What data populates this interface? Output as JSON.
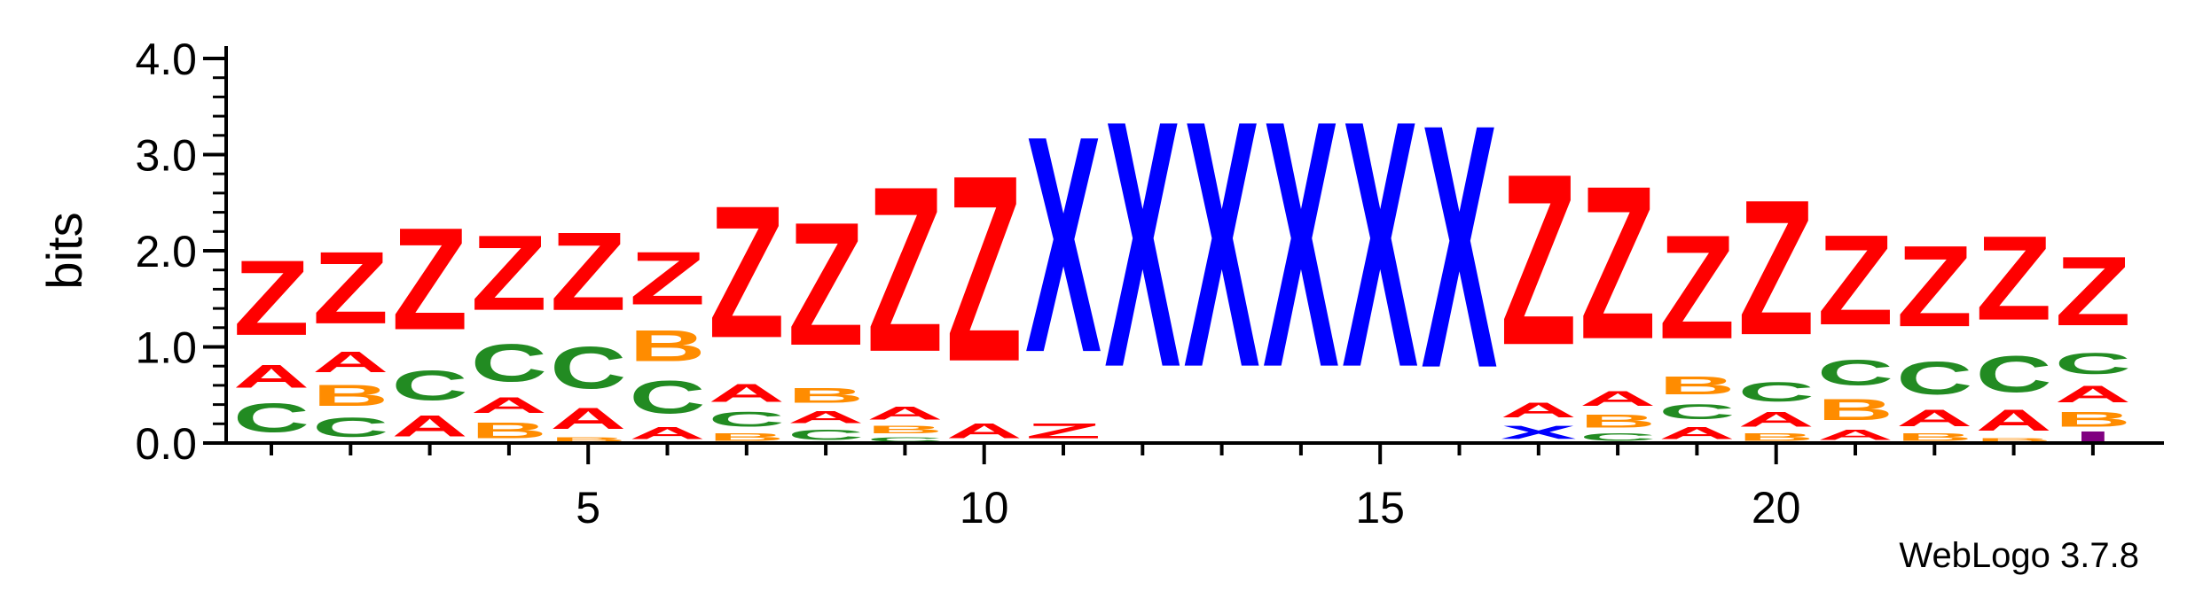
{
  "chart_data": {
    "type": "sequence-logo",
    "ylabel": "bits",
    "ylim": [
      0,
      4.0
    ],
    "yticks": [
      "0.0",
      "1.0",
      "2.0",
      "3.0",
      "4.0"
    ],
    "xticks": [
      5,
      10,
      15,
      20
    ],
    "positions": 24,
    "colors": {
      "Z": "#ff0000",
      "A": "#ff0000",
      "X": "#0000ff",
      "B": "#ff8c00",
      "C": "#228b22",
      "other": "#800080"
    },
    "columns": [
      {
        "pos": 1,
        "stack": [
          [
            "A",
            0.02
          ],
          [
            "C",
            0.48
          ],
          [
            "A",
            0.38
          ],
          [
            "Z",
            1.25
          ]
        ]
      },
      {
        "pos": 2,
        "stack": [
          [
            "C",
            0.32
          ],
          [
            "B",
            0.35
          ],
          [
            "A",
            0.34
          ],
          [
            "Z",
            1.2
          ]
        ]
      },
      {
        "pos": 3,
        "stack": [
          [
            "A",
            0.35
          ],
          [
            "C",
            0.5
          ],
          [
            "Z",
            1.7
          ]
        ]
      },
      {
        "pos": 4,
        "stack": [
          [
            "B",
            0.26
          ],
          [
            "A",
            0.26
          ],
          [
            "C",
            0.62
          ],
          [
            "Z",
            1.25
          ]
        ]
      },
      {
        "pos": 5,
        "stack": [
          [
            "B",
            0.08
          ],
          [
            "A",
            0.35
          ],
          [
            "C",
            0.7
          ],
          [
            "Z",
            1.3
          ]
        ]
      },
      {
        "pos": 6,
        "stack": [
          [
            "A",
            0.2
          ],
          [
            "C",
            0.55
          ],
          [
            "B",
            0.52
          ],
          [
            "Z",
            0.88
          ]
        ]
      },
      {
        "pos": 7,
        "stack": [
          [
            "B",
            0.12
          ],
          [
            "C",
            0.25
          ],
          [
            "A",
            0.3
          ],
          [
            "Z",
            2.2
          ]
        ]
      },
      {
        "pos": 8,
        "stack": [
          [
            "C",
            0.17
          ],
          [
            "A",
            0.2
          ],
          [
            "B",
            0.25
          ],
          [
            "Z",
            2.05
          ]
        ]
      },
      {
        "pos": 9,
        "stack": [
          [
            "C",
            0.08
          ],
          [
            "B",
            0.12
          ],
          [
            "A",
            0.22
          ],
          [
            "Z",
            2.75
          ]
        ]
      },
      {
        "pos": 10,
        "stack": [
          [
            "A",
            0.25
          ],
          [
            "Z",
            3.1
          ]
        ]
      },
      {
        "pos": 11,
        "stack": [
          [
            "Z",
            0.25
          ],
          [
            "X",
            3.6
          ]
        ]
      },
      {
        "pos": 12,
        "stack": [
          [
            "X",
            4.1
          ]
        ]
      },
      {
        "pos": 13,
        "stack": [
          [
            "X",
            4.1
          ]
        ]
      },
      {
        "pos": 14,
        "stack": [
          [
            "X",
            4.1
          ]
        ]
      },
      {
        "pos": 15,
        "stack": [
          [
            "X",
            4.1
          ]
        ]
      },
      {
        "pos": 16,
        "stack": [
          [
            "X",
            4.05
          ]
        ]
      },
      {
        "pos": 17,
        "stack": [
          [
            "X",
            0.22
          ],
          [
            "A",
            0.25
          ],
          [
            "Z",
            2.85
          ]
        ]
      },
      {
        "pos": 18,
        "stack": [
          [
            "C",
            0.12
          ],
          [
            "B",
            0.22
          ],
          [
            "A",
            0.25
          ],
          [
            "Z",
            2.55
          ]
        ]
      },
      {
        "pos": 19,
        "stack": [
          [
            "A",
            0.2
          ],
          [
            "C",
            0.25
          ],
          [
            "B",
            0.3
          ],
          [
            "Z",
            1.73
          ]
        ]
      },
      {
        "pos": 20,
        "stack": [
          [
            "B",
            0.12
          ],
          [
            "A",
            0.25
          ],
          [
            "C",
            0.32
          ],
          [
            "Z",
            2.25
          ]
        ]
      },
      {
        "pos": 21,
        "stack": [
          [
            "A",
            0.17
          ],
          [
            "B",
            0.35
          ],
          [
            "C",
            0.42
          ],
          [
            "Z",
            1.5
          ]
        ]
      },
      {
        "pos": 22,
        "stack": [
          [
            "B",
            0.12
          ],
          [
            "A",
            0.28
          ],
          [
            "C",
            0.55
          ],
          [
            "Z",
            1.35
          ]
        ]
      },
      {
        "pos": 23,
        "stack": [
          [
            "B",
            0.06
          ],
          [
            "A",
            0.35
          ],
          [
            "C",
            0.6
          ],
          [
            "Z",
            1.4
          ]
        ]
      },
      {
        "pos": 24,
        "stack": [
          [
            "?",
            0.12
          ],
          [
            "B",
            0.25
          ],
          [
            "A",
            0.28
          ],
          [
            "C",
            0.35
          ],
          [
            "Z",
            1.15
          ]
        ]
      }
    ]
  },
  "footer": {
    "credit": "WebLogo 3.7.8"
  }
}
